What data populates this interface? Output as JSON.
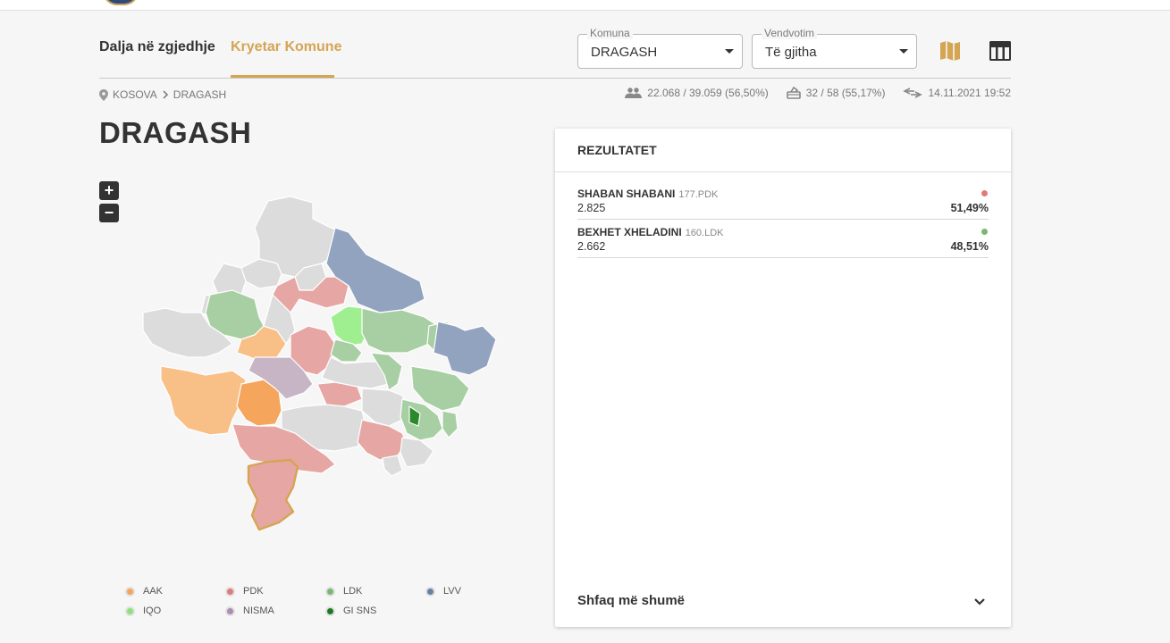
{
  "tabs": [
    {
      "label": "Dalja në zgjedhje"
    },
    {
      "label": "Kryetar Komune"
    }
  ],
  "filters": {
    "komuna": {
      "label": "Komuna",
      "value": "DRAGASH"
    },
    "vendvotim": {
      "label": "Vendvotim",
      "value": "Të gjitha"
    }
  },
  "breadcrumb": {
    "root": "KOSOVA",
    "current": "DRAGASH"
  },
  "stats": {
    "turnout": "22.068 / 39.059 (56,50%)",
    "stations": "32 / 58 (55,17%)",
    "updated": "14.11.2021 19:52"
  },
  "page_title": "DRAGASH",
  "zoom": {
    "in": "+",
    "out": "−"
  },
  "results": {
    "title": "REZULTATET",
    "rows": [
      {
        "name": "SHABAN SHABANI",
        "party": "177.PDK",
        "votes": "2.825",
        "percent": "51,49%",
        "color": "#e07b79"
      },
      {
        "name": "BEXHET XHELADINI",
        "party": "160.LDK",
        "votes": "2.662",
        "percent": "48,51%",
        "color": "#78b872"
      }
    ],
    "more_label": "Shfaq më shumë"
  },
  "legend": [
    {
      "label": "AAK",
      "color": "#f5a55c"
    },
    {
      "label": "PDK",
      "color": "#e07b79"
    },
    {
      "label": "LDK",
      "color": "#78b872"
    },
    {
      "label": "LVV",
      "color": "#6680a8"
    },
    {
      "label": "IQO",
      "color": "#8ee27a"
    },
    {
      "label": "NISMA",
      "color": "#a98db4"
    },
    {
      "label": "GI SNS",
      "color": "#1f7a1f"
    }
  ],
  "colors": {
    "accent": "#d4a553",
    "map_none": "#dcdcdc",
    "aak": "#f8bf86",
    "aak_strong": "#f5a55c",
    "pdk": "#e6a7a4",
    "ldk": "#a8cfa3",
    "lvv": "#92a3c0",
    "iqo": "#9fef90",
    "nisma": "#c7b5c6",
    "gisns": "#2a8a2a"
  },
  "icons": {
    "map_view": "map-icon",
    "table_view": "table-icon",
    "voters": "people-icon",
    "stations": "ballot-box-icon",
    "updated": "swap-arrows-icon",
    "location": "pin-icon"
  }
}
